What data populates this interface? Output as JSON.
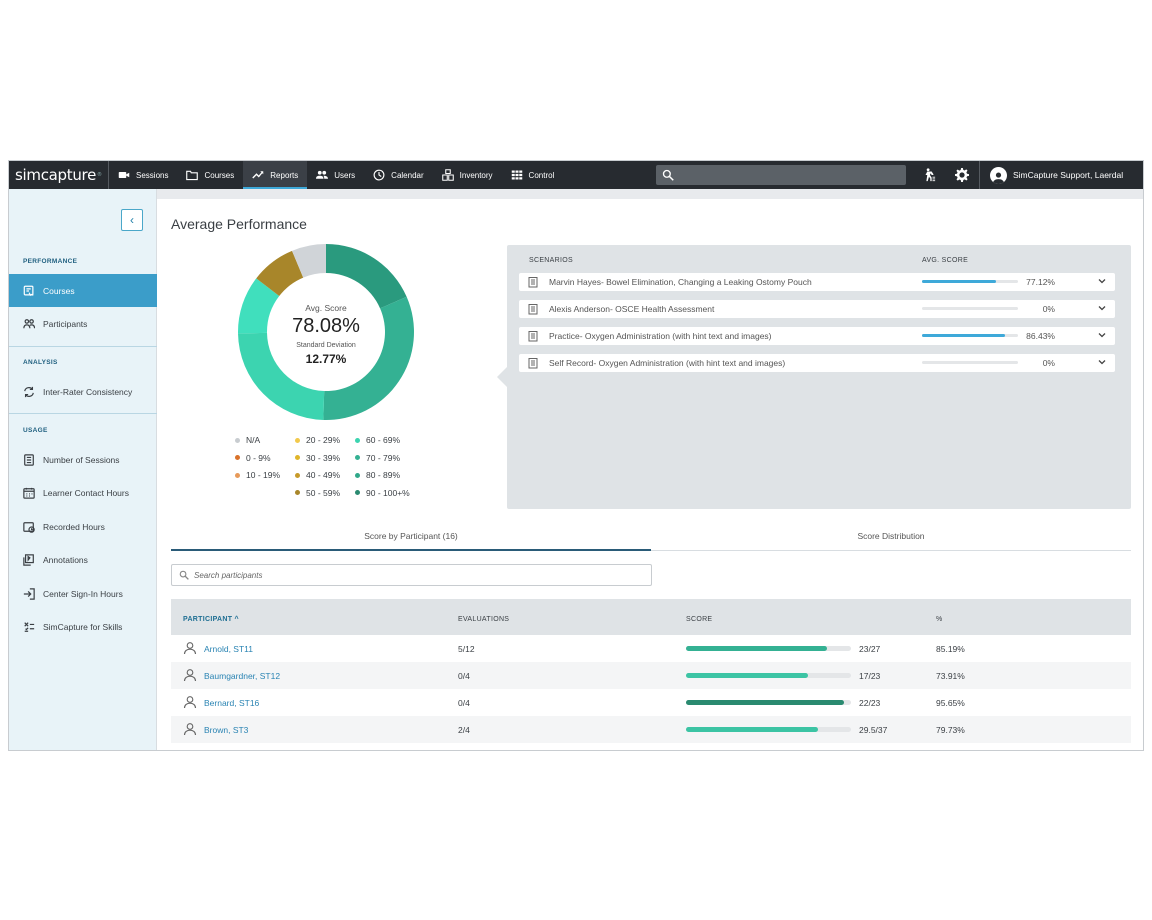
{
  "nav": {
    "logo": "simcapture",
    "logo_mark": "®",
    "items": [
      {
        "label": "Sessions",
        "icon": "video-icon"
      },
      {
        "label": "Courses",
        "icon": "folder-icon"
      },
      {
        "label": "Reports",
        "icon": "trend-icon",
        "active": true
      },
      {
        "label": "Users",
        "icon": "users-icon"
      },
      {
        "label": "Calendar",
        "icon": "clock-icon"
      },
      {
        "label": "Inventory",
        "icon": "inventory-icon"
      },
      {
        "label": "Control",
        "icon": "grid-icon"
      }
    ],
    "user": "SimCapture Support, Laerdal",
    "accent": "#3ea9d9"
  },
  "sidebar": {
    "sections": {
      "performance": "PERFORMANCE",
      "analysis": "ANALYSIS",
      "usage": "USAGE"
    },
    "items": [
      {
        "label": "Courses",
        "active": true
      },
      {
        "label": "Participants"
      },
      {
        "label": "Inter-Rater Consistency"
      },
      {
        "label": "Number of Sessions"
      },
      {
        "label": "Learner Contact Hours"
      },
      {
        "label": "Recorded Hours"
      },
      {
        "label": "Annotations"
      },
      {
        "label": "Center Sign-In Hours"
      },
      {
        "label": "SimCapture for Skills"
      }
    ]
  },
  "main": {
    "title": "Average Performance",
    "avg_label": "Avg. Score",
    "avg_value": "78.08%",
    "sd_label": "Standard Deviation",
    "sd_value": "12.77%",
    "donut_segments": [
      {
        "range": "90 - 100+%",
        "share": 0.19,
        "color": "#2a9a7e"
      },
      {
        "range": "70 - 79%",
        "share": 0.33,
        "color": "#34b193"
      },
      {
        "range": "80 - 89%",
        "share": 0.0,
        "color": "#30a88a"
      },
      {
        "range": "60 - 69%",
        "share": 0.25,
        "color": "#3cd4b0"
      },
      {
        "range": "60 - 69% (light)",
        "share": 0.11,
        "color": "#40dfbd"
      },
      {
        "range": "50 - 59%",
        "share": 0.085,
        "color": "#a8862a"
      },
      {
        "range": "N/A",
        "share": 0.065,
        "color": "#d0d4d8"
      }
    ],
    "legend": [
      {
        "label": "N/A",
        "color": "#c8ccd0"
      },
      {
        "label": "0 - 9%",
        "color": "#d9722a"
      },
      {
        "label": "10 - 19%",
        "color": "#e79a5a"
      },
      {
        "label": "20 - 29%",
        "color": "#f2c94c"
      },
      {
        "label": "30 - 39%",
        "color": "#e0b52a"
      },
      {
        "label": "40 - 49%",
        "color": "#c79a2a"
      },
      {
        "label": "50 - 59%",
        "color": "#a8862a"
      },
      {
        "label": "60 - 69%",
        "color": "#3cd4b0"
      },
      {
        "label": "70 - 79%",
        "color": "#34b193"
      },
      {
        "label": "80 - 89%",
        "color": "#30a88a"
      },
      {
        "label": "90 - 100+%",
        "color": "#2a8a70"
      }
    ]
  },
  "scenarios": {
    "header_name": "SCENARIOS",
    "header_score": "AVG. SCORE",
    "rows": [
      {
        "name": "Marvin Hayes- Bowel Elimination, Changing a Leaking Ostomy Pouch",
        "score": "77.12%",
        "fraction": 0.7712
      },
      {
        "name": "Alexis Anderson- OSCE Health Assessment",
        "score": "0%",
        "fraction": 0
      },
      {
        "name": "Practice- Oxygen Administration (with hint text and images)",
        "score": "86.43%",
        "fraction": 0.8643
      },
      {
        "name": "Self Record- Oxygen Administration (with hint text and images)",
        "score": "0%",
        "fraction": 0
      }
    ]
  },
  "tabs": {
    "score_by_participant": "Score by Participant (16)",
    "score_distribution": "Score Distribution"
  },
  "search": {
    "placeholder": "Search participants"
  },
  "table": {
    "headers": {
      "participant": "PARTICIPANT ^",
      "evaluations": "EVALUATIONS",
      "score": "SCORE",
      "percent": "%"
    },
    "rows": [
      {
        "name": "Arnold, ST11",
        "evaluations": "5/12",
        "score": "23/27",
        "percent": "85.19%",
        "fraction": 0.8519,
        "color": "#34b193"
      },
      {
        "name": "Baumgardner, ST12",
        "evaluations": "0/4",
        "score": "17/23",
        "percent": "73.91%",
        "fraction": 0.7391,
        "color": "#3cc4a4"
      },
      {
        "name": "Bernard, ST16",
        "evaluations": "0/4",
        "score": "22/23",
        "percent": "95.65%",
        "fraction": 0.9565,
        "color": "#2a8a70"
      },
      {
        "name": "Brown, ST3",
        "evaluations": "2/4",
        "score": "29.5/37",
        "percent": "79.73%",
        "fraction": 0.7973,
        "color": "#3cc4a4"
      }
    ]
  }
}
